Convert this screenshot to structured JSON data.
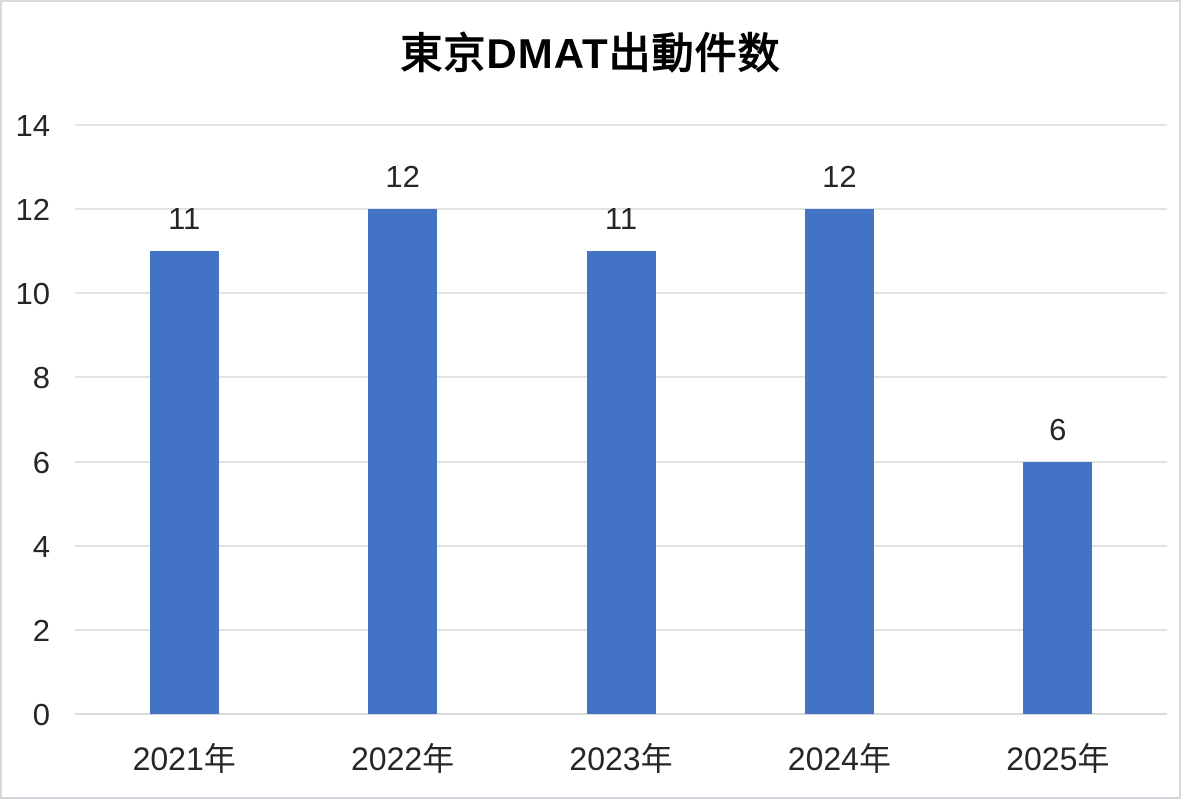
{
  "chart_data": {
    "type": "bar",
    "title": "東京DMAT出動件数",
    "categories": [
      "2021年",
      "2022年",
      "2023年",
      "2024年",
      "2025年"
    ],
    "values": [
      11,
      12,
      11,
      12,
      6
    ],
    "data_labels": [
      "11",
      "12",
      "11",
      "12",
      "6"
    ],
    "xlabel": "",
    "ylabel": "",
    "ylim": [
      0,
      14
    ],
    "ytick_step": 2,
    "ytick_labels": [
      "0",
      "2",
      "4",
      "6",
      "8",
      "10",
      "12",
      "14"
    ],
    "grid": true,
    "legend_position": "none",
    "colors": {
      "bar": "#4472C4",
      "gridline": "#e2e2e2",
      "axis_text": "#262626",
      "title_text": "#000000",
      "frame_border": "#d9d9d9"
    }
  }
}
